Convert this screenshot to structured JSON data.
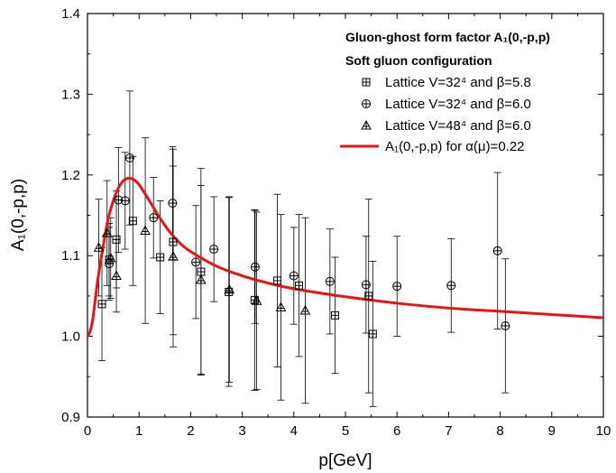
{
  "chart_data": {
    "type": "scatter",
    "xlabel": "p[GeV]",
    "ylabel": "A₁(0,-p,p)",
    "xlim": [
      0,
      10
    ],
    "ylim": [
      0.9,
      1.4
    ],
    "x_ticks": [
      "0",
      "1",
      "2",
      "3",
      "4",
      "5",
      "6",
      "7",
      "8",
      "9",
      "10"
    ],
    "y_ticks": [
      "0.9",
      "1.0",
      "1.1",
      "1.2",
      "1.3",
      "1.4"
    ],
    "grid": false,
    "legend": {
      "placement": "top-right",
      "title_line1": "Gluon-ghost form factor A₁(0,-p,p)",
      "title_line2": "Soft gluon configuration",
      "entries": [
        "Lattice V=32⁴ and β=5.8",
        "Lattice V=32⁴ and β=6.0",
        "Lattice V=48⁴ and β=6.0",
        "A₁(0,-p,p) for α(μ)=0.22"
      ]
    },
    "series": [
      {
        "name": "Lattice V=32⁴ and β=5.8",
        "marker": "square-plus",
        "points": [
          {
            "x": 0.28,
            "y": 1.04,
            "err": 0.07
          },
          {
            "x": 0.42,
            "y": 1.095,
            "err": 0.045
          },
          {
            "x": 0.56,
            "y": 1.12,
            "err": 0.06
          },
          {
            "x": 0.88,
            "y": 1.143,
            "err": 0.08
          },
          {
            "x": 1.41,
            "y": 1.098,
            "err": 0.07
          },
          {
            "x": 1.66,
            "y": 1.117,
            "err": 0.115
          },
          {
            "x": 2.2,
            "y": 1.08,
            "err": 0.128
          },
          {
            "x": 2.74,
            "y": 1.055,
            "err": 0.117
          },
          {
            "x": 3.24,
            "y": 1.045,
            "err": 0.112
          },
          {
            "x": 3.68,
            "y": 1.069,
            "err": 0.107
          },
          {
            "x": 4.1,
            "y": 1.063,
            "err": 0.088
          },
          {
            "x": 4.8,
            "y": 1.026,
            "err": 0.072
          },
          {
            "x": 5.45,
            "y": 1.05,
            "err": 0.12
          },
          {
            "x": 5.53,
            "y": 1.003,
            "err": 0.09
          }
        ]
      },
      {
        "name": "Lattice V=32⁴ and β=6.0",
        "marker": "circle-plus",
        "points": [
          {
            "x": 0.42,
            "y": 1.09,
            "err": 0.045
          },
          {
            "x": 0.6,
            "y": 1.169,
            "err": 0.065
          },
          {
            "x": 0.73,
            "y": 1.168,
            "err": 0.06
          },
          {
            "x": 0.82,
            "y": 1.221,
            "err": 0.083
          },
          {
            "x": 1.28,
            "y": 1.147,
            "err": 0.05
          },
          {
            "x": 1.65,
            "y": 1.165,
            "err": 0.07
          },
          {
            "x": 2.1,
            "y": 1.092,
            "err": 0.07
          },
          {
            "x": 2.45,
            "y": 1.108,
            "err": 0.065
          },
          {
            "x": 3.25,
            "y": 1.086,
            "err": 0.07
          },
          {
            "x": 4.0,
            "y": 1.075,
            "err": 0.06
          },
          {
            "x": 4.7,
            "y": 1.068,
            "err": 0.065
          },
          {
            "x": 5.4,
            "y": 1.064,
            "err": 0.06
          },
          {
            "x": 6.0,
            "y": 1.062,
            "err": 0.062
          },
          {
            "x": 7.05,
            "y": 1.063,
            "err": 0.058
          },
          {
            "x": 7.95,
            "y": 1.106,
            "err": 0.097
          },
          {
            "x": 8.1,
            "y": 1.013,
            "err": 0.083
          }
        ]
      },
      {
        "name": "Lattice V=48⁴ and β=6.0",
        "marker": "triangle-plus",
        "points": [
          {
            "x": 0.22,
            "y": 1.11,
            "err": 0.06
          },
          {
            "x": 0.38,
            "y": 1.128,
            "err": 0.065
          },
          {
            "x": 0.45,
            "y": 1.097,
            "err": 0.05
          },
          {
            "x": 0.56,
            "y": 1.075,
            "err": 0.045
          },
          {
            "x": 1.12,
            "y": 1.131,
            "err": 0.115
          },
          {
            "x": 1.66,
            "y": 1.099,
            "err": 0.112
          },
          {
            "x": 2.2,
            "y": 1.07,
            "err": 0.117
          },
          {
            "x": 2.75,
            "y": 1.058,
            "err": 0.115
          },
          {
            "x": 3.28,
            "y": 1.044,
            "err": 0.11
          },
          {
            "x": 3.75,
            "y": 1.036,
            "err": 0.115
          },
          {
            "x": 4.22,
            "y": 1.032,
            "err": 0.115
          }
        ]
      },
      {
        "name": "A₁(0,-p,p) for α(μ)=0.22",
        "type": "line",
        "color": "#ee1111",
        "points": [
          {
            "x": 0.0,
            "y": 1.0
          },
          {
            "x": 0.05,
            "y": 1.006
          },
          {
            "x": 0.1,
            "y": 1.02
          },
          {
            "x": 0.15,
            "y": 1.045
          },
          {
            "x": 0.2,
            "y": 1.07
          },
          {
            "x": 0.3,
            "y": 1.11
          },
          {
            "x": 0.4,
            "y": 1.145
          },
          {
            "x": 0.5,
            "y": 1.168
          },
          {
            "x": 0.6,
            "y": 1.184
          },
          {
            "x": 0.7,
            "y": 1.193
          },
          {
            "x": 0.8,
            "y": 1.196
          },
          {
            "x": 0.9,
            "y": 1.194
          },
          {
            "x": 1.0,
            "y": 1.188
          },
          {
            "x": 1.2,
            "y": 1.168
          },
          {
            "x": 1.4,
            "y": 1.147
          },
          {
            "x": 1.6,
            "y": 1.129
          },
          {
            "x": 1.8,
            "y": 1.115
          },
          {
            "x": 2.0,
            "y": 1.105
          },
          {
            "x": 2.5,
            "y": 1.087
          },
          {
            "x": 3.0,
            "y": 1.075
          },
          {
            "x": 3.5,
            "y": 1.066
          },
          {
            "x": 4.0,
            "y": 1.059
          },
          {
            "x": 5.0,
            "y": 1.049
          },
          {
            "x": 6.0,
            "y": 1.041
          },
          {
            "x": 7.0,
            "y": 1.035
          },
          {
            "x": 8.0,
            "y": 1.031
          },
          {
            "x": 9.0,
            "y": 1.027
          },
          {
            "x": 10.0,
            "y": 1.023
          }
        ]
      }
    ]
  }
}
